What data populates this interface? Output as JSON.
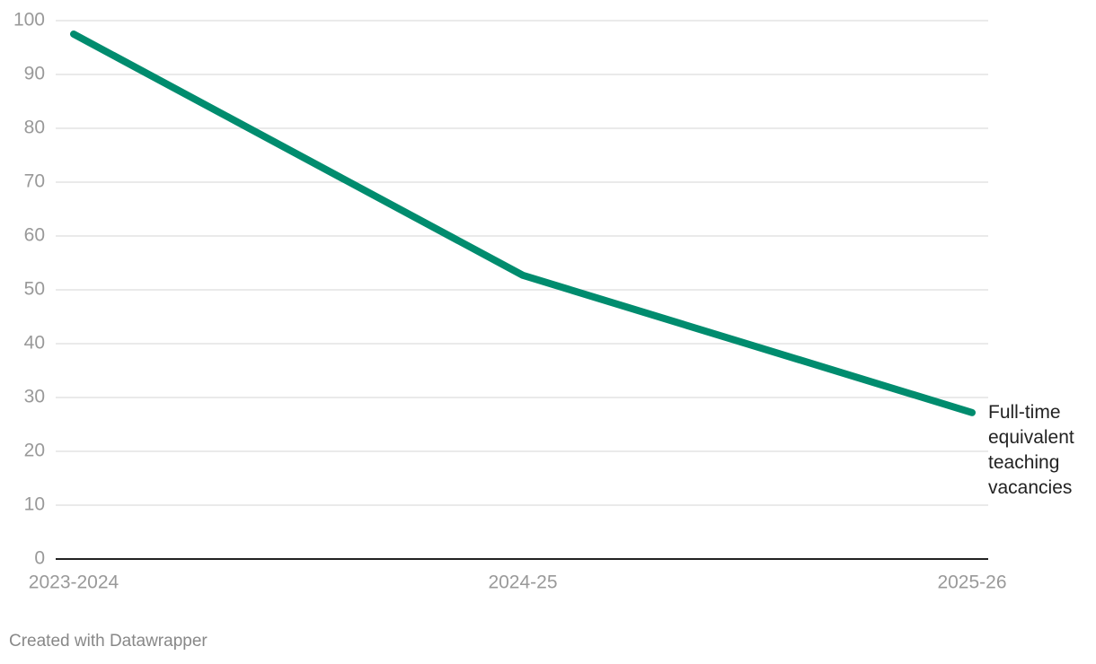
{
  "chart_data": {
    "type": "line",
    "categories": [
      "2023-2024",
      "2024-25",
      "2025-26"
    ],
    "series": [
      {
        "name": "Full-time equivalent teaching vacancies",
        "color": "#008c6e",
        "values": [
          97.5,
          52.7,
          27.2
        ]
      }
    ],
    "ylim": [
      0,
      100
    ],
    "yticks": [
      0,
      10,
      20,
      30,
      40,
      50,
      60,
      70,
      80,
      90,
      100
    ],
    "grid": true,
    "credit": "Created with Datawrapper"
  }
}
